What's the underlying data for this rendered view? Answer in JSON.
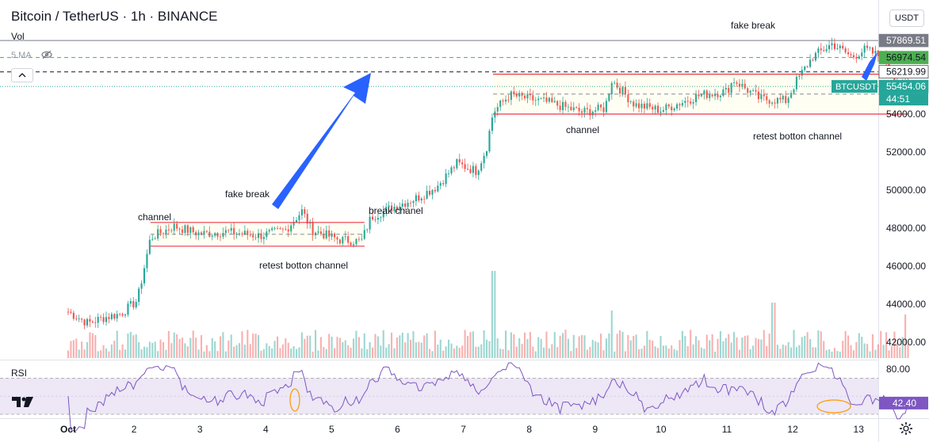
{
  "header": {
    "symbol": "Bitcoin / TetherUS · 1h · BINANCE"
  },
  "volume_label": "Vol",
  "ma_label": "5 MA",
  "currency_button": "USDT",
  "rsi_label": "RSI",
  "colors": {
    "up": "#26a69a",
    "down": "#ef5350",
    "rsi": "#7e57c2",
    "arrow": "#2962ff",
    "channel": "#f23645"
  },
  "price_tags": [
    {
      "value": "57869.51",
      "bg": "#787b86",
      "fg": "#ffffff"
    },
    {
      "value": "56974.54",
      "bg": "#4caf50",
      "fg": "#131722"
    },
    {
      "value": "56219.99",
      "bg": "#ffffff",
      "fg": "#131722"
    },
    {
      "value": "55454.06",
      "bg": "#26a69a",
      "fg": "#ffffff"
    }
  ],
  "symbol_tag": "BTCUSDT",
  "countdown": "44:51",
  "rsi_value": "42.40",
  "annotations": [
    "fake break",
    "channel",
    "retest botton channel",
    "break chanel",
    "channel",
    "fake break",
    "retest botton channel"
  ],
  "chart_data": {
    "type": "candlestick",
    "title": "Bitcoin / TetherUS · 1h · BINANCE",
    "x_ticks": [
      "Oct",
      "2",
      "3",
      "4",
      "5",
      "6",
      "7",
      "8",
      "9",
      "10",
      "11",
      "12",
      "13"
    ],
    "y_ticks": [
      "54000.00",
      "52000.00",
      "50000.00",
      "48000.00",
      "46000.00",
      "44000.00",
      "42000.00"
    ],
    "rsi_ticks": [
      "80.00"
    ],
    "price_path": [
      [
        0,
        43600
      ],
      [
        0.3,
        43000
      ],
      [
        0.55,
        43300
      ],
      [
        0.8,
        43500
      ],
      [
        1.05,
        44200
      ],
      [
        1.25,
        47500
      ],
      [
        1.6,
        48100
      ],
      [
        2.0,
        47700
      ],
      [
        2.4,
        47800
      ],
      [
        2.9,
        47600
      ],
      [
        3.3,
        47900
      ],
      [
        3.55,
        48900
      ],
      [
        3.7,
        47900
      ],
      [
        4.1,
        47400
      ],
      [
        4.45,
        47300
      ],
      [
        4.6,
        48600
      ],
      [
        5.0,
        49200
      ],
      [
        5.3,
        49600
      ],
      [
        5.6,
        50200
      ],
      [
        5.9,
        51400
      ],
      [
        6.2,
        51000
      ],
      [
        6.35,
        52200
      ],
      [
        6.45,
        54100
      ],
      [
        6.7,
        55000
      ],
      [
        7.3,
        54600
      ],
      [
        7.8,
        54100
      ],
      [
        8.15,
        54300
      ],
      [
        8.25,
        55800
      ],
      [
        8.6,
        54500
      ],
      [
        9.0,
        54200
      ],
      [
        9.6,
        55000
      ],
      [
        10.0,
        55200
      ],
      [
        10.1,
        55800
      ],
      [
        10.5,
        54800
      ],
      [
        10.9,
        54700
      ],
      [
        11.05,
        55700
      ],
      [
        11.3,
        57000
      ],
      [
        11.6,
        57700
      ],
      [
        11.9,
        57000
      ],
      [
        12.1,
        57400
      ],
      [
        12.4,
        56900
      ],
      [
        12.6,
        55600
      ],
      [
        12.75,
        55454
      ]
    ],
    "channels": [
      {
        "label": "channel",
        "x0": 1.25,
        "x1": 4.5,
        "top": 48300,
        "bottom": 47050
      },
      {
        "label": "channel",
        "x0": 6.45,
        "x1": 12.75,
        "top": 56100,
        "bottom": 54000
      }
    ],
    "horizontal_levels": [
      57869.51,
      56974.54,
      56219.99,
      55454.06
    ],
    "rsi_last": 42.4
  }
}
